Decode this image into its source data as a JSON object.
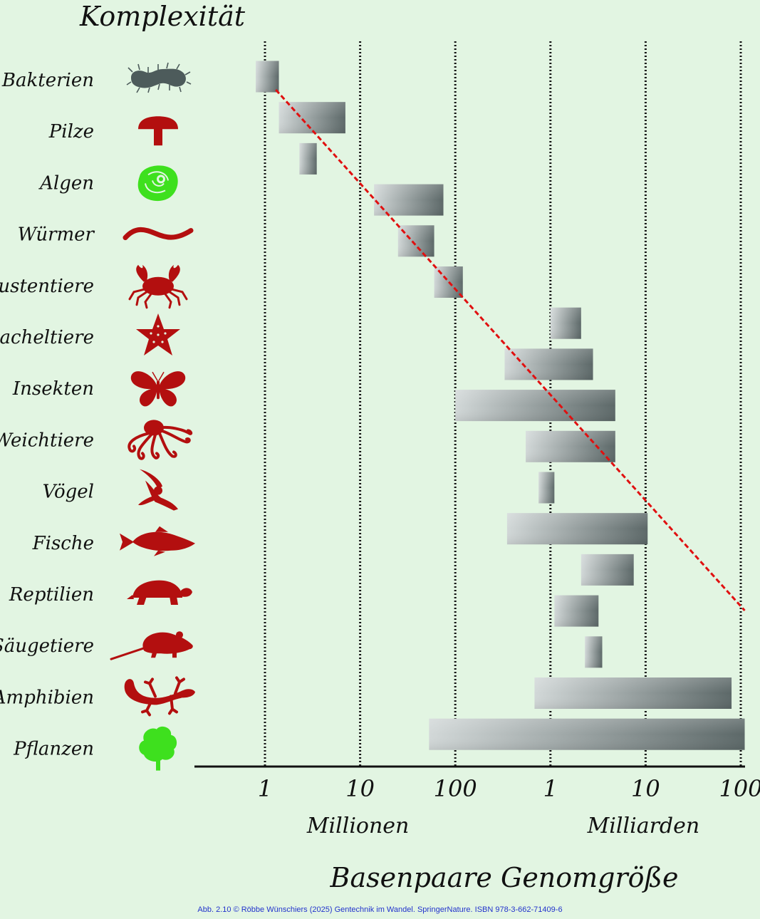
{
  "chart_data": {
    "type": "range-bar",
    "title": "Komplexität",
    "xlabel": "Basenpaare Genomgröße",
    "x_scale": "log10",
    "x_unit": "base pairs",
    "xlim_bp": [
      150000,
      120000000000
    ],
    "gridlines_bp": [
      1000000,
      10000000,
      100000000,
      1000000000,
      10000000000,
      100000000000
    ],
    "grid_style": "dotted-vertical",
    "tick_labels": [
      "1",
      "10",
      "100",
      "1",
      "10",
      "100"
    ],
    "unit_labels": [
      {
        "text": "Millionen",
        "center_bp": 10000000
      },
      {
        "text": "Milliarden",
        "center_bp": 10000000000
      }
    ],
    "categories": [
      "Bakterien",
      "Pilze",
      "Algen",
      "Würmer",
      "Krustentiere",
      "Stacheltiere",
      "Insekten",
      "Weichtiere",
      "Vögel",
      "Fische",
      "Reptilien",
      "Säugetiere",
      "Amphibien",
      "Pflanzen"
    ],
    "ranges_bp": [
      [
        800000,
        1400000
      ],
      [
        1400000,
        7000000
      ],
      [
        2300000,
        3500000
      ],
      [
        14000000,
        75000000
      ],
      [
        25000000,
        60000000
      ],
      [
        60000000,
        120000000
      ],
      [
        1000000000,
        2100000000
      ],
      [
        330000000,
        2800000000
      ],
      [
        100000000,
        4800000000
      ],
      [
        550000000,
        4800000000
      ],
      [
        750000000,
        1100000000
      ],
      [
        350000000,
        10500000000
      ],
      [
        2100000000,
        7500000000
      ],
      [
        1100000000,
        3200000000
      ],
      [
        2300000000,
        3500000000
      ],
      [
        680000000,
        80000000000
      ],
      [
        53000000,
        110000000000
      ]
    ],
    "range_rows": [
      0,
      1,
      2,
      3,
      4,
      5,
      6,
      7,
      8,
      9,
      10,
      11,
      12,
      13,
      14,
      15,
      16
    ],
    "trend_line": {
      "style": "red-dashed",
      "from_bp": 1300000,
      "to_bp": 110000000000
    },
    "icons": [
      "bacterium-icon",
      "mushroom-icon",
      "alga-cell-icon",
      "worm-icon",
      "crab-icon",
      "starfish-icon",
      "butterfly-icon",
      "octopus-icon",
      "bird-icon",
      "fish-icon",
      "turtle-icon",
      "rat-icon",
      "lizard-icon",
      "tree-icon"
    ],
    "colors": {
      "background": "#e2f5e2",
      "icon": "#b30f0f",
      "icon_green": "#3ee01e",
      "bacterium": "#4d5b5b",
      "bar_light": "#d2d8d8",
      "bar_dark": "#5c6868",
      "trend": "#e01010"
    }
  },
  "caption": "Abb. 2.10 © Röbbe Wünschiers (2025) Gentechnik im Wandel. SpringerNature. ISBN 978-3-662-71409-6"
}
